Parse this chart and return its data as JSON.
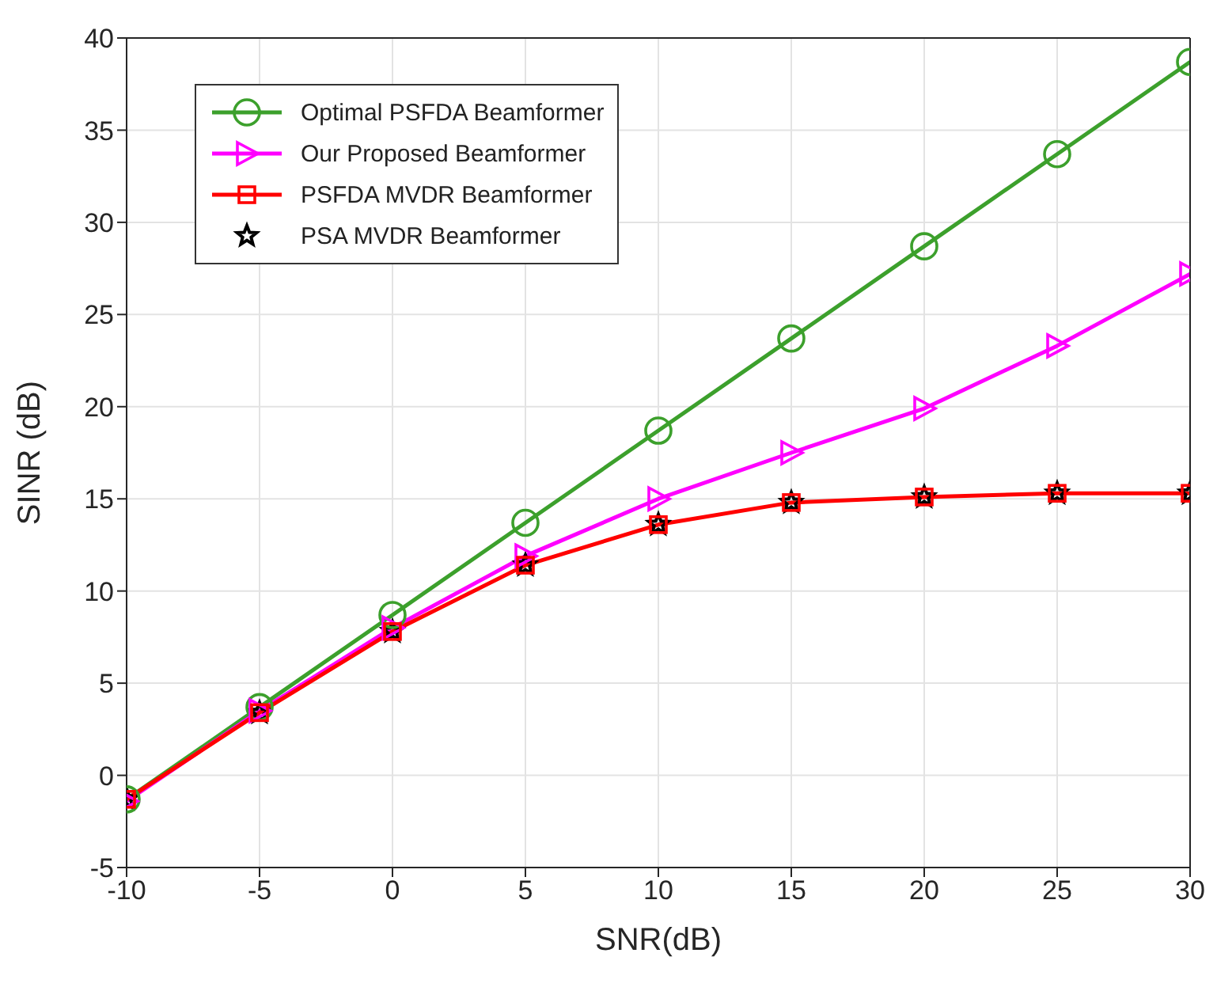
{
  "chart_data": {
    "type": "line",
    "xlabel": "SNR(dB)",
    "ylabel": "SINR (dB)",
    "x": [
      -10,
      -5,
      0,
      5,
      10,
      15,
      20,
      25,
      30
    ],
    "series": [
      {
        "name": "Optimal PSFDA Beamformer",
        "color": "#3ca02c",
        "marker": "circle",
        "values": [
          -1.3,
          3.7,
          8.7,
          13.7,
          18.7,
          23.7,
          28.7,
          33.7,
          38.7
        ]
      },
      {
        "name": "Our Proposed Beamformer",
        "color": "#ff00ff",
        "marker": "triangle",
        "values": [
          -1.4,
          3.5,
          8.0,
          11.9,
          15.0,
          17.5,
          19.9,
          23.3,
          27.2
        ]
      },
      {
        "name": "PSFDA MVDR Beamformer",
        "color": "#ff0000",
        "marker": "square",
        "values": [
          -1.3,
          3.4,
          7.8,
          11.4,
          13.6,
          14.8,
          15.1,
          15.3,
          15.3
        ]
      },
      {
        "name": "PSA MVDR Beamformer",
        "type": "scatter",
        "color": "#000000",
        "marker": "star",
        "values": [
          -1.3,
          3.4,
          7.8,
          11.4,
          13.6,
          14.8,
          15.1,
          15.3,
          15.3
        ]
      }
    ],
    "xlim": [
      -10,
      30
    ],
    "xticks": [
      -10,
      -5,
      0,
      5,
      10,
      15,
      20,
      25,
      30
    ],
    "ylim": [
      -5,
      40
    ],
    "yticks": [
      -5,
      0,
      5,
      10,
      15,
      20,
      25,
      30,
      35,
      40
    ],
    "grid": true,
    "legend": "top left",
    "line_style": "solid"
  }
}
